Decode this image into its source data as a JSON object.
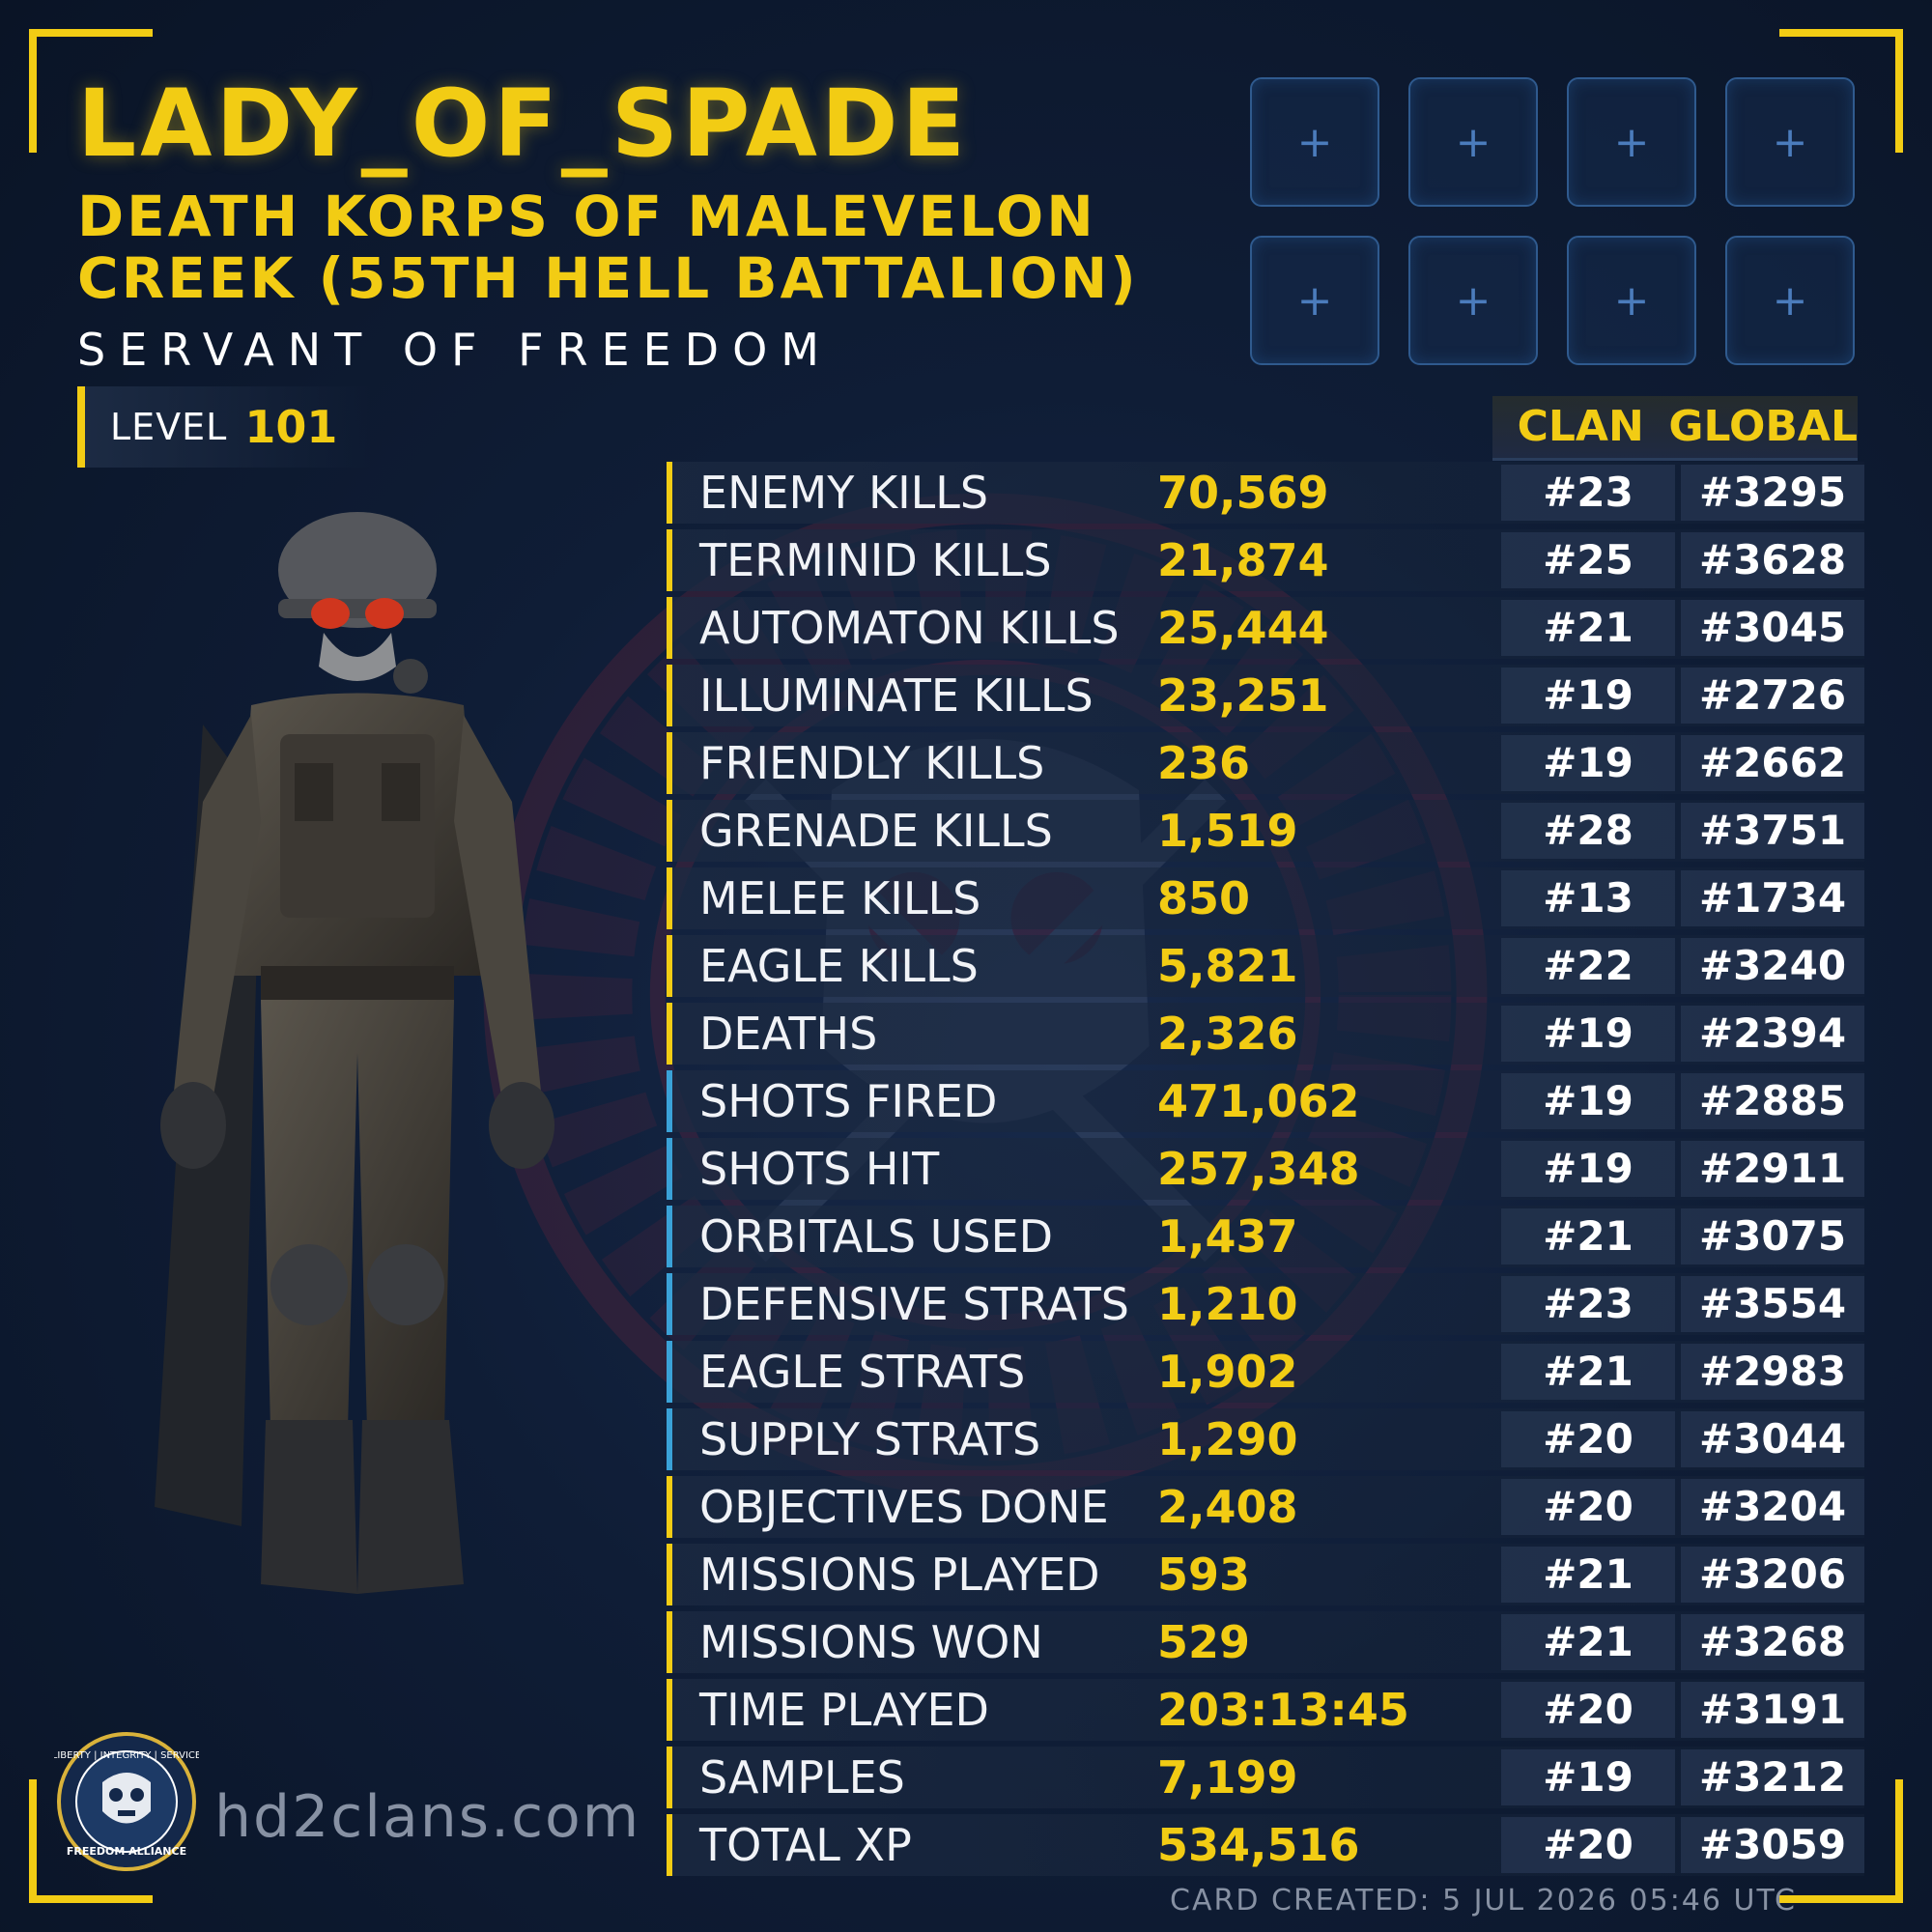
{
  "player": {
    "name": "LADY_OF_SPADE",
    "clan": "DEATH KORPS OF MALEVELON CREEK (55TH HELL BATTALION)",
    "title": "SERVANT OF FREEDOM",
    "level_label": "LEVEL",
    "level": "101"
  },
  "slots": [
    "+",
    "+",
    "+",
    "+",
    "+",
    "+",
    "+",
    "+"
  ],
  "columns": {
    "clan": "CLAN",
    "global": "GLOBAL"
  },
  "stats": [
    {
      "label": "ENEMY KILLS",
      "value": "70,569",
      "clan": "#23",
      "global": "#3295"
    },
    {
      "label": "TERMINID KILLS",
      "value": "21,874",
      "clan": "#25",
      "global": "#3628"
    },
    {
      "label": "AUTOMATON KILLS",
      "value": "25,444",
      "clan": "#21",
      "global": "#3045"
    },
    {
      "label": "ILLUMINATE KILLS",
      "value": "23,251",
      "clan": "#19",
      "global": "#2726"
    },
    {
      "label": "FRIENDLY KILLS",
      "value": "236",
      "clan": "#19",
      "global": "#2662"
    },
    {
      "label": "GRENADE KILLS",
      "value": "1,519",
      "clan": "#28",
      "global": "#3751"
    },
    {
      "label": "MELEE KILLS",
      "value": "850",
      "clan": "#13",
      "global": "#1734"
    },
    {
      "label": "EAGLE KILLS",
      "value": "5,821",
      "clan": "#22",
      "global": "#3240"
    },
    {
      "label": "DEATHS",
      "value": "2,326",
      "clan": "#19",
      "global": "#2394"
    },
    {
      "label": "SHOTS FIRED",
      "value": "471,062",
      "clan": "#19",
      "global": "#2885"
    },
    {
      "label": "SHOTS HIT",
      "value": "257,348",
      "clan": "#19",
      "global": "#2911"
    },
    {
      "label": "ORBITALS USED",
      "value": "1,437",
      "clan": "#21",
      "global": "#3075"
    },
    {
      "label": "DEFENSIVE STRATS",
      "value": "1,210",
      "clan": "#23",
      "global": "#3554"
    },
    {
      "label": "EAGLE STRATS",
      "value": "1,902",
      "clan": "#21",
      "global": "#2983"
    },
    {
      "label": "SUPPLY STRATS",
      "value": "1,290",
      "clan": "#20",
      "global": "#3044"
    },
    {
      "label": "OBJECTIVES DONE",
      "value": "2,408",
      "clan": "#20",
      "global": "#3204"
    },
    {
      "label": "MISSIONS PLAYED",
      "value": "593",
      "clan": "#21",
      "global": "#3206"
    },
    {
      "label": "MISSIONS WON",
      "value": "529",
      "clan": "#21",
      "global": "#3268"
    },
    {
      "label": "TIME PLAYED",
      "value": "203:13:45",
      "clan": "#20",
      "global": "#3191"
    },
    {
      "label": "SAMPLES",
      "value": "7,199",
      "clan": "#19",
      "global": "#3212"
    },
    {
      "label": "TOTAL XP",
      "value": "534,516",
      "clan": "#20",
      "global": "#3059"
    }
  ],
  "footer": {
    "site": "hd2clans.com",
    "logo_text_top": "LIBERTY | INTEGRITY | SERVICE",
    "logo_text_bottom": "FREEDOM ALLIANCE",
    "card_created": "CARD CREATED: 5 JUL 2026 05:46 UTC"
  },
  "colors": {
    "accent_yellow": "#f2cc14",
    "accent_blue": "#3aa2d8",
    "background": "#0f1d36"
  },
  "icons": {
    "slot_icon": "plus-icon",
    "logo": "skull-shield-icon",
    "watermark": "clan-emblem-icon"
  }
}
